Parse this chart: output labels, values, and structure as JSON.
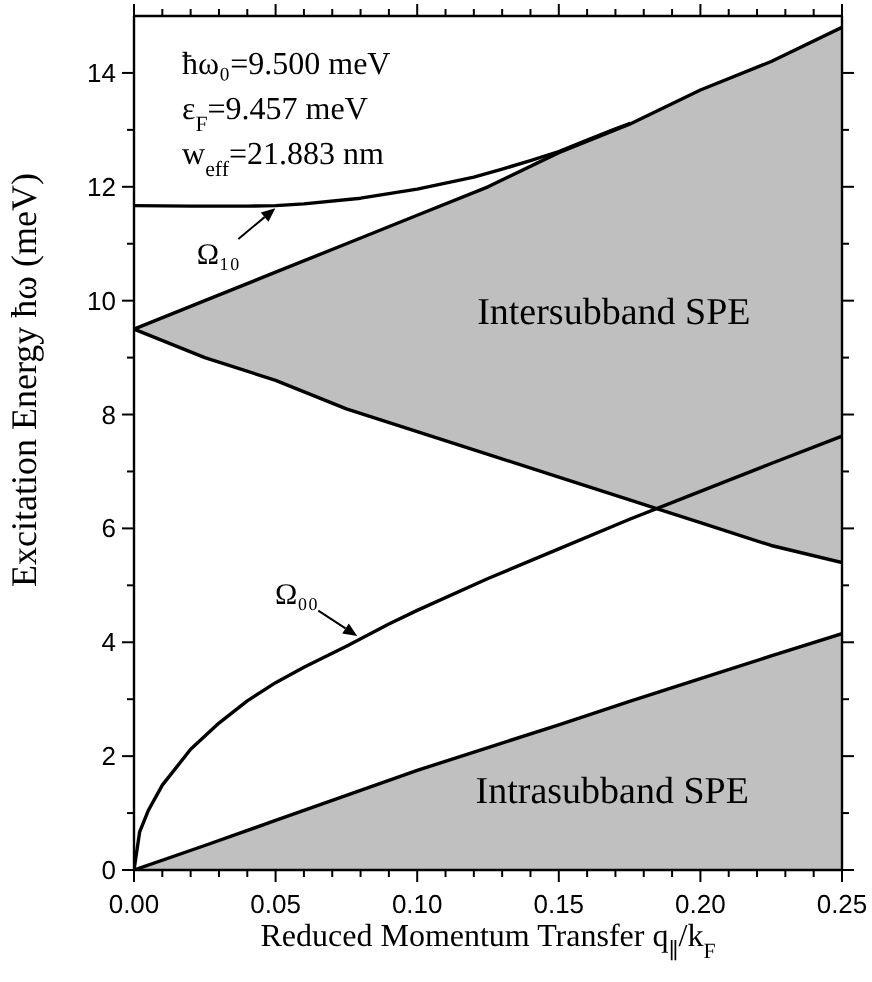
{
  "chart_data": {
    "type": "line",
    "xlabel": "Reduced Momentum Transfer q$_{∥}$/k$_{F}$",
    "ylabel": "Excitation Energy ħω (meV)",
    "annotations": [
      "ħω₀=9.500 meV",
      "ε$_{F}$=9.457 meV",
      "w$_{eff}$=21.883 nm",
      {
        "text": "Ω₁₀",
        "x": 0.051,
        "y": 11.67
      },
      {
        "text": "Ω₀₀",
        "x": 0.08,
        "y": 4.07
      }
    ],
    "x": [
      0,
      0.025,
      0.05,
      0.075,
      0.1,
      0.125,
      0.15,
      0.175,
      0.2,
      0.225,
      0.25
    ],
    "series": [
      {
        "name": "Intersubband SPE",
        "color": "#000000",
        "values": [
          9.5,
          10.0,
          10.5,
          11.0,
          11.5,
          12.0,
          12.6,
          13.1,
          13.7,
          14.2,
          14.8
        ],
        "lower": [
          9.5,
          9.0,
          8.6,
          8.1,
          7.7,
          7.3,
          6.9,
          6.5,
          6.1,
          5.7,
          5.4
        ],
        "upper": [
          9.5,
          10.0,
          10.5,
          11.0,
          11.5,
          12.0,
          12.6,
          13.1,
          13.7,
          14.2,
          14.8
        ]
      },
      {
        "color": "#000000",
        "values": [
          9.5,
          9.0,
          8.6,
          8.1,
          7.7,
          7.3,
          6.9,
          6.5,
          6.1,
          5.7,
          5.4
        ]
      },
      {
        "type": "area",
        "name": "Intrasubband SPE",
        "color": "#c0c0c0",
        "values": [
          0,
          0.43,
          0.87,
          1.31,
          1.75,
          2.15,
          2.55,
          2.96,
          3.36,
          3.76,
          4.15
        ]
      },
      {
        "color": "#000000",
        "x": [
          0,
          0.02,
          0.04,
          0.05,
          0.06,
          0.08,
          0.1,
          0.12,
          0.13,
          0.14,
          0.15,
          0.16,
          0.17,
          0.175
        ],
        "values": [
          11.67,
          11.66,
          11.66,
          11.67,
          11.7,
          11.8,
          11.96,
          12.17,
          12.31,
          12.46,
          12.62,
          12.82,
          13.02,
          13.11
        ]
      },
      {
        "color": "#000000",
        "x": [
          0,
          0.002,
          0.005,
          0.01,
          0.02,
          0.03,
          0.04,
          0.05,
          0.06,
          0.075,
          0.09,
          0.1,
          0.125,
          0.15,
          0.175,
          0.2,
          0.225,
          0.25
        ],
        "values": [
          0,
          0.67,
          1.04,
          1.49,
          2.12,
          2.58,
          2.97,
          3.29,
          3.56,
          3.93,
          4.32,
          4.56,
          5.12,
          5.64,
          6.16,
          6.65,
          7.14,
          7.62
        ]
      }
    ],
    "xlim": [
      0,
      0.25
    ],
    "xticks": [
      {
        "value": 0,
        "label": "0.00"
      },
      {
        "value": 0.01,
        "label": null
      },
      {
        "value": 0.02,
        "label": null
      },
      {
        "value": 0.03,
        "label": null
      },
      {
        "value": 0.04,
        "label": null
      },
      0.05,
      {
        "value": 0.06,
        "label": null
      },
      {
        "value": 0.07,
        "label": null
      },
      {
        "value": 0.08,
        "label": null
      },
      {
        "value": 0.09,
        "label": null
      },
      {
        "value": 0.1,
        "label": "0.10"
      },
      {
        "value": 0.11,
        "label": null
      },
      {
        "value": 0.12,
        "label": null
      },
      {
        "value": 0.13,
        "label": null
      },
      {
        "value": 0.14,
        "label": null
      },
      0.15,
      {
        "value": 0.16,
        "label": null
      },
      {
        "value": 0.17,
        "label": null
      },
      {
        "value": 0.18,
        "label": null
      },
      {
        "value": 0.19,
        "label": null
      },
      {
        "value": 0.2,
        "label": "0.20"
      },
      {
        "value": 0.21,
        "label": null
      },
      {
        "value": 0.22,
        "label": null
      },
      {
        "value": 0.23,
        "label": null
      },
      {
        "value": 0.24,
        "label": null
      },
      0.25
    ],
    "ylim": [
      0,
      15
    ],
    "yticks": [
      0,
      {
        "value": 1,
        "label": null
      },
      2,
      {
        "value": 3,
        "label": null
      },
      4,
      {
        "value": 5,
        "label": null
      },
      6,
      {
        "value": 7,
        "label": null
      },
      8,
      {
        "value": 9,
        "label": null
      },
      10,
      {
        "value": 11,
        "label": null
      },
      12,
      {
        "value": 13,
        "label": null
      },
      14
    ]
  }
}
